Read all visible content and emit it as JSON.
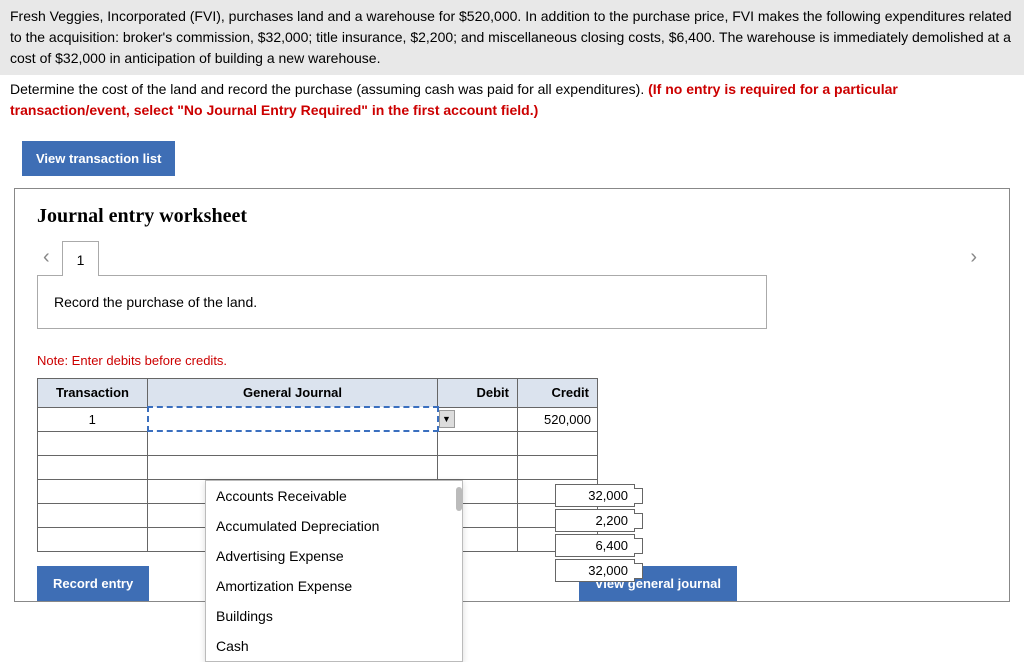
{
  "question": {
    "para1": "Fresh Veggies, Incorporated (FVI), purchases land and a warehouse for $520,000. In addition to the purchase price, FVI makes the following expenditures related to the acquisition: broker's commission, $32,000; title insurance, $2,200; and miscellaneous closing costs, $6,400. The warehouse is immediately demolished at a cost of $32,000 in anticipation of building a new warehouse.",
    "instruction_plain": "Determine the cost of the land and record the purchase (assuming cash was paid for all expenditures). ",
    "instruction_red": "(If no entry is required for a particular transaction/event, select \"No Journal Entry Required\" in the first account field.)"
  },
  "buttons": {
    "view_transaction_list": "View transaction list",
    "record_entry": "Record entry",
    "view_general_journal": "View general journal"
  },
  "worksheet": {
    "title": "Journal entry worksheet",
    "page": "1",
    "prompt": "Record the purchase of the land.",
    "note": "Note: Enter debits before credits."
  },
  "table": {
    "headers": {
      "transaction": "Transaction",
      "general_journal": "General Journal",
      "debit": "Debit",
      "credit": "Credit"
    },
    "rows": [
      {
        "transaction": "1",
        "gj": "",
        "debit": "",
        "credit": "520,000"
      },
      {
        "transaction": "",
        "gj": "",
        "debit": "",
        "credit": ""
      },
      {
        "transaction": "",
        "gj": "",
        "debit": "",
        "credit": ""
      },
      {
        "transaction": "",
        "gj": "",
        "debit": "",
        "credit": ""
      },
      {
        "transaction": "",
        "gj": "",
        "debit": "",
        "credit": ""
      },
      {
        "transaction": "",
        "gj": "",
        "debit": "",
        "credit": ""
      }
    ]
  },
  "dropdown": {
    "options": [
      "Accounts Receivable",
      "Accumulated Depreciation",
      "Advertising Expense",
      "Amortization Expense",
      "Buildings",
      "Cash"
    ]
  },
  "floating_debits": [
    "32,000",
    "2,200",
    "6,400",
    "32,000"
  ],
  "colors": {
    "blue_btn": "#3e6eb5",
    "header_bg": "#dbe3ee",
    "red": "#c00"
  }
}
